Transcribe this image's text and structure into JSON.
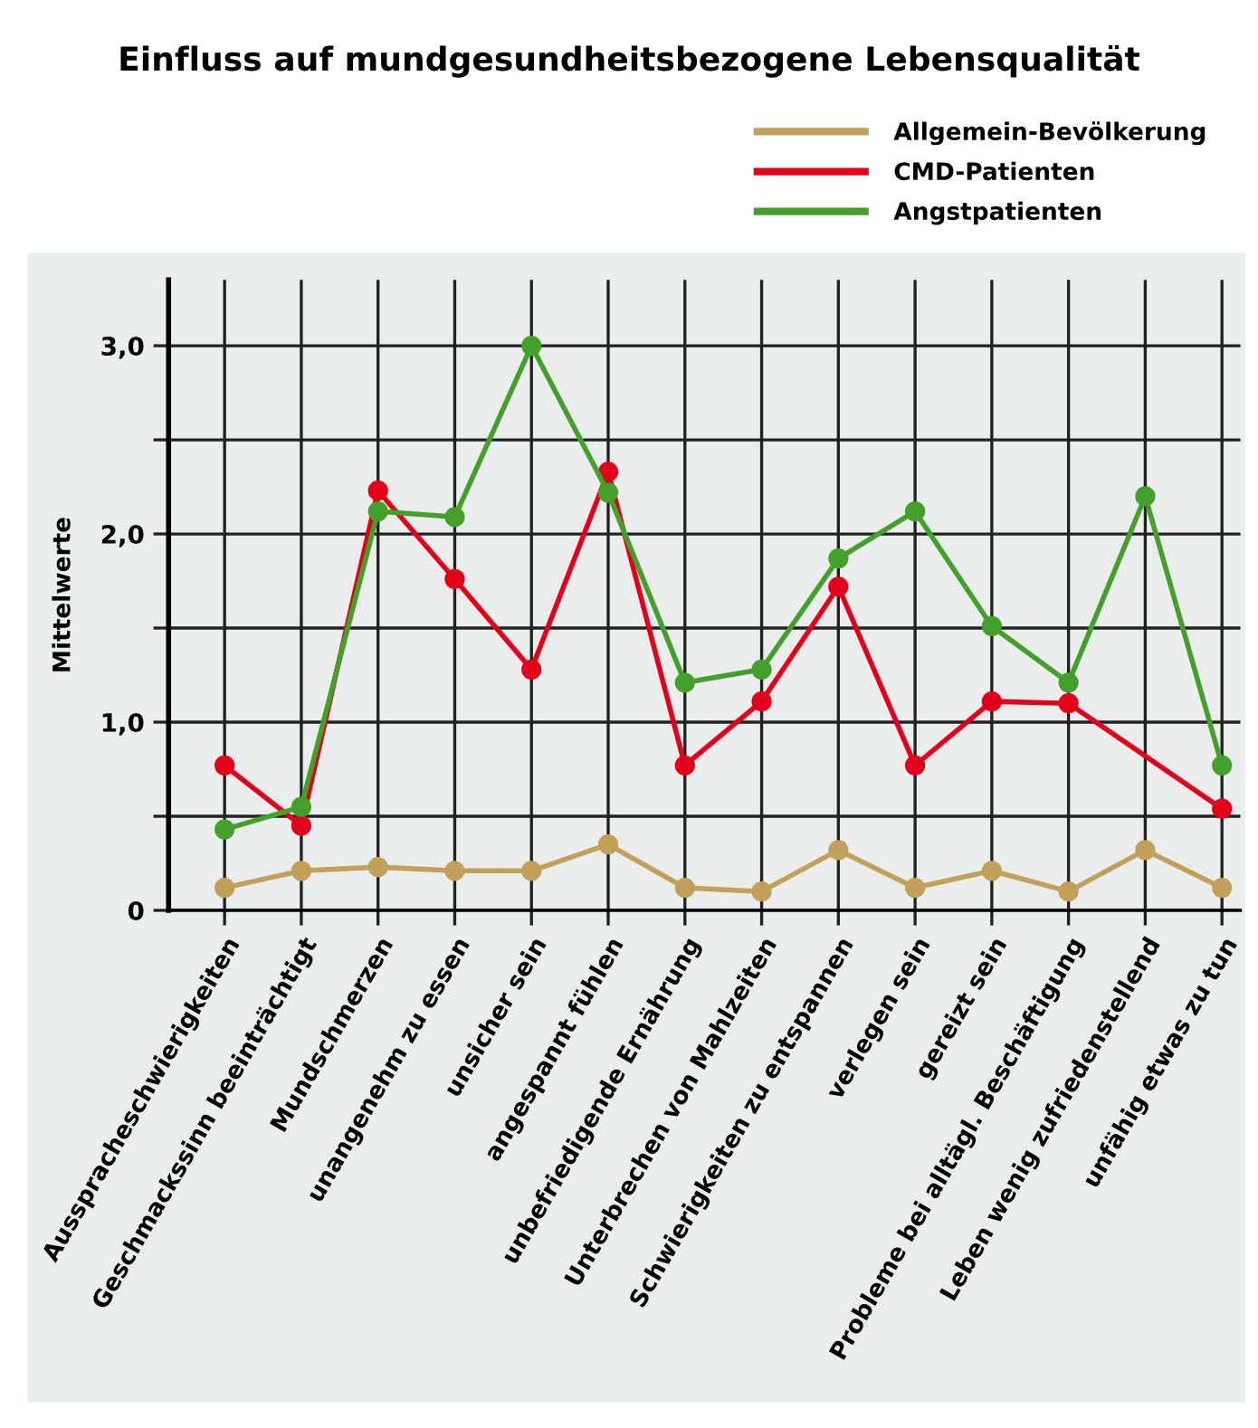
{
  "chart_data": {
    "type": "line",
    "title": "Einfluss auf mundgesundheitsbezogene Lebensqualität",
    "ylabel": "Mittelwerte",
    "categories": [
      "Ausspracheschwierigkeiten",
      "Geschmackssinn beeinträchtigt",
      "Mundschmerzen",
      "unangenehm zu essen",
      "unsicher sein",
      "angespannt fühlen",
      "unbefriedigende Ernährung",
      "Unterbrechen von Mahlzeiten",
      "Schwierigkeiten zu entspannen",
      "verlegen sein",
      "gereizt sein",
      "Probleme bei alltägl. Beschäftigung",
      "Leben wenig zufriedenstellend",
      "unfähig etwas zu tun"
    ],
    "series": [
      {
        "name": "Allgemein-Bevölkerung",
        "color": "#c1a05a",
        "values": [
          0.12,
          0.21,
          0.23,
          0.21,
          0.21,
          0.35,
          0.12,
          0.1,
          0.32,
          0.12,
          0.21,
          0.1,
          0.32,
          0.12
        ]
      },
      {
        "name": "CMD-Patienten",
        "color": "#e2001a",
        "values": [
          0.77,
          0.45,
          2.23,
          1.76,
          1.28,
          2.33,
          0.77,
          1.11,
          1.72,
          0.77,
          1.11,
          1.1,
          null,
          0.54
        ]
      },
      {
        "name": "Angstpatienten",
        "color": "#43a02a",
        "values": [
          0.43,
          0.55,
          2.12,
          2.09,
          3.0,
          2.22,
          1.21,
          1.28,
          1.87,
          2.12,
          1.51,
          1.21,
          2.2,
          0.77
        ]
      }
    ],
    "ylim": [
      0,
      3.35
    ],
    "yticks": [
      0,
      {
        "value": 0.5,
        "label": null
      },
      {
        "value": 1.0,
        "label": "1,0"
      },
      {
        "value": 1.5,
        "label": null
      },
      {
        "value": 2.0,
        "label": "2,0"
      },
      {
        "value": 2.5,
        "label": null
      },
      {
        "value": 3.0,
        "label": "3,0"
      }
    ],
    "grid": true,
    "legend": "top right",
    "marker": "circle",
    "line_style": "solid"
  }
}
